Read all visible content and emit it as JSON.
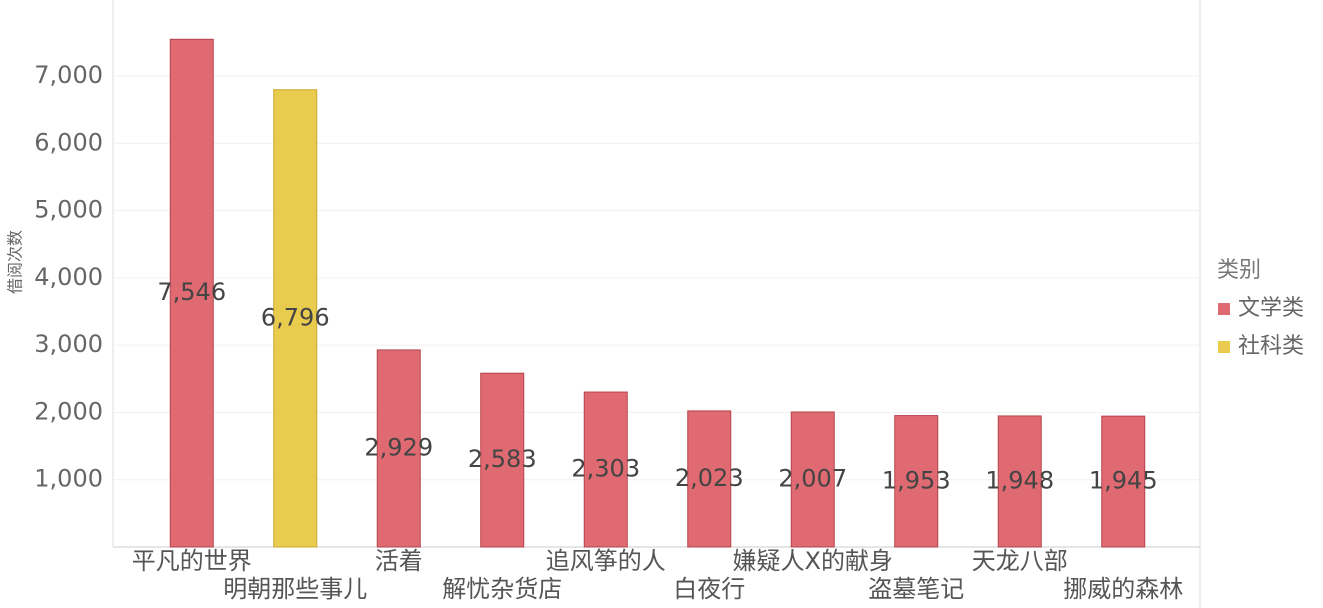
{
  "chart_data": {
    "type": "bar",
    "y_label": "借阅次数",
    "legend_title": "类别",
    "categories": [
      "平凡的世界",
      "明朝那些事儿",
      "活着",
      "解忧杂货店",
      "追风筝的人",
      "白夜行",
      "嫌疑人X的献身",
      "盗墓笔记",
      "天龙八部",
      "挪威的森林"
    ],
    "series": [
      {
        "name": "文学类",
        "color": "#e06a72",
        "values": [
          7546,
          null,
          2929,
          2583,
          2303,
          2023,
          2007,
          1953,
          1948,
          1945
        ],
        "value_labels": [
          "7,546",
          null,
          "2,929",
          "2,583",
          "2,303",
          "2,023",
          "2,007",
          "1,953",
          "1,948",
          "1,945"
        ]
      },
      {
        "name": "社科类",
        "color": "#e9cb4e",
        "values": [
          null,
          6796,
          null,
          null,
          null,
          null,
          null,
          null,
          null,
          null
        ],
        "value_labels": [
          null,
          "6,796",
          null,
          null,
          null,
          null,
          null,
          null,
          null,
          null
        ]
      }
    ],
    "ylim": [
      0,
      8130
    ],
    "yticks": [
      {
        "value": 1000,
        "label": "1,000"
      },
      {
        "value": 2000,
        "label": "2,000"
      },
      {
        "value": 3000,
        "label": "3,000"
      },
      {
        "value": 4000,
        "label": "4,000"
      },
      {
        "value": 5000,
        "label": "5,000"
      },
      {
        "value": 6000,
        "label": "6,000"
      },
      {
        "value": 7000,
        "label": "7,000"
      }
    ],
    "grid": true
  }
}
